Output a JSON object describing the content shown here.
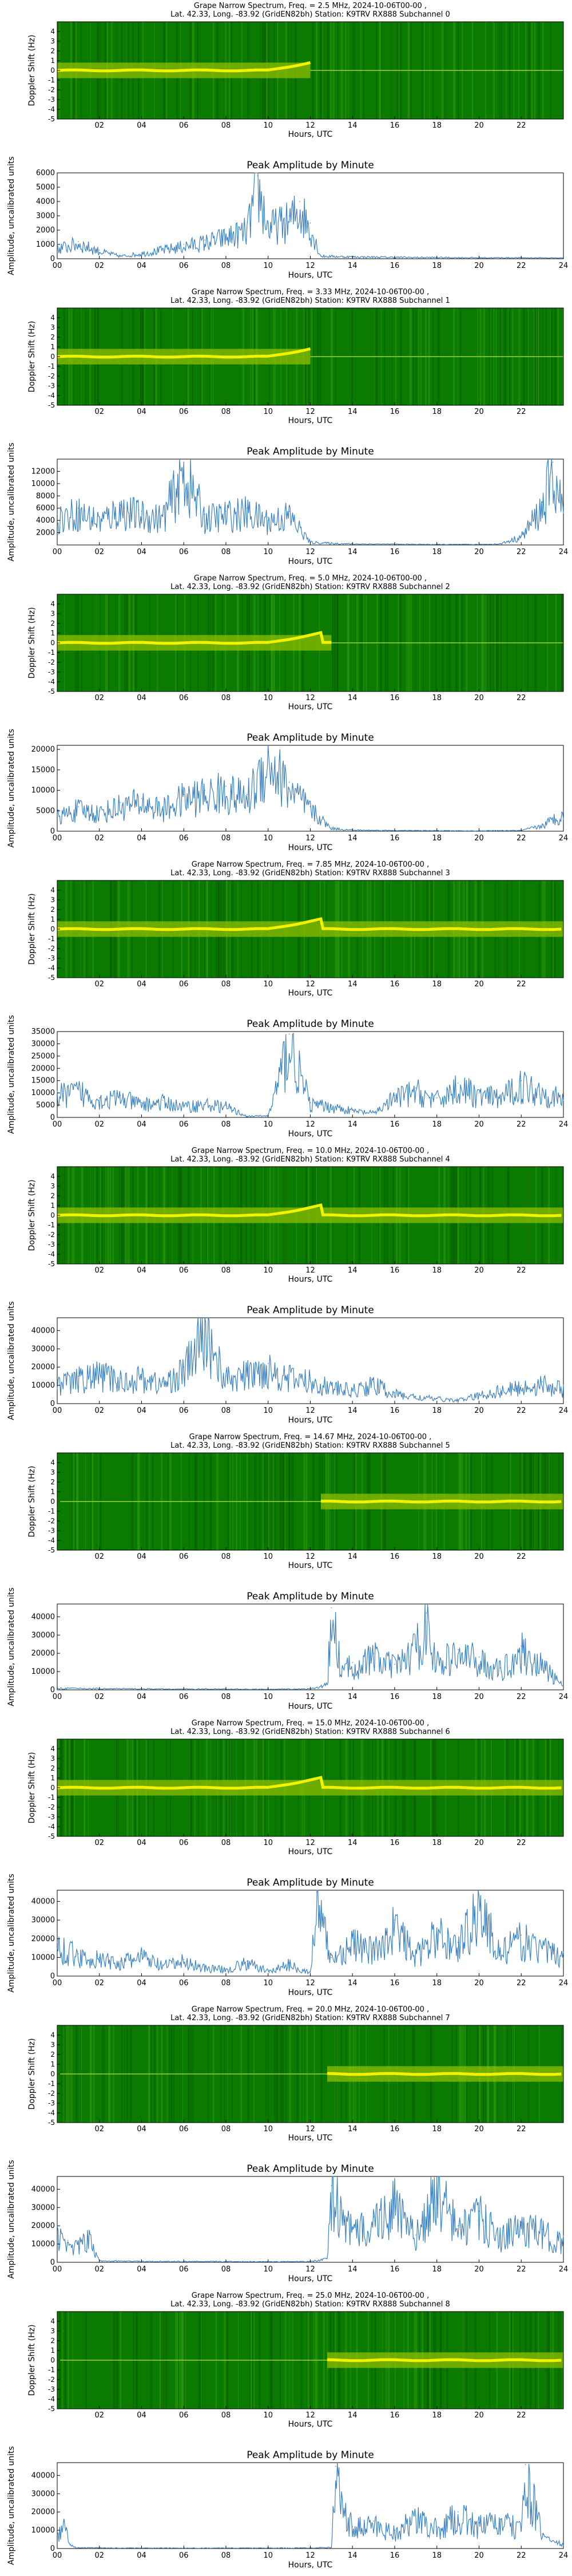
{
  "colors": {
    "spectrogram_bg": "#0a7a00",
    "spectrogram_band": "#f2f200",
    "spectrogram_mid": "#8fbf00",
    "amplitude_line": "#3b82c4",
    "axis": "#000000"
  },
  "chart_data": [
    {
      "type": "heatmap",
      "title_line1": "Grape Narrow Spectrum, Freq. = 2.5 MHz, 2024-10-06T00-00 ,",
      "title_line2": "Lat.  42.33, Long. -83.92 (GridEN82bh) Station: K9TRV RX888 Subchannel 0",
      "xlabel": "Hours, UTC",
      "ylabel": "Doppler Shift (Hz)",
      "xlim": [
        0,
        24
      ],
      "ylim": [
        -5,
        5
      ],
      "x_ticks": [
        "02",
        "04",
        "06",
        "08",
        "10",
        "12",
        "14",
        "16",
        "18",
        "20",
        "22"
      ],
      "y_ticks": [
        "4",
        "3",
        "2",
        "1",
        "0",
        "-1",
        "-2",
        "-3",
        "-4",
        "-5"
      ],
      "signal_start_hour": 0,
      "signal_end_hour": 12
    },
    {
      "type": "line",
      "title": "Peak Amplitude by Minute",
      "xlabel": "Hours, UTC",
      "ylabel": "Amplitude, uncalibrated units",
      "xlim": [
        0,
        24
      ],
      "ylim": [
        0,
        6000
      ],
      "x_ticks": [
        "00",
        "02",
        "04",
        "06",
        "08",
        "10",
        "12",
        "14",
        "16",
        "18",
        "20",
        "22",
        "24"
      ],
      "y_ticks": [
        "0",
        "1000",
        "2000",
        "3000",
        "4000",
        "5000",
        "6000"
      ],
      "x": [
        0,
        1,
        2,
        3,
        4,
        5,
        6,
        7,
        8,
        9,
        9.5,
        10,
        11,
        11.5,
        12,
        12.5,
        14,
        16,
        18,
        20,
        22,
        24
      ],
      "y": [
        800,
        1200,
        600,
        200,
        400,
        700,
        1000,
        1300,
        1700,
        2200,
        5800,
        2500,
        3000,
        4000,
        2500,
        200,
        150,
        120,
        100,
        80,
        80,
        60
      ]
    },
    {
      "type": "heatmap",
      "title_line1": "Grape Narrow Spectrum, Freq. = 3.33 MHz, 2024-10-06T00-00 ,",
      "title_line2": "Lat.  42.33, Long. -83.92 (GridEN82bh) Station: K9TRV RX888 Subchannel 1",
      "xlabel": "Hours, UTC",
      "ylabel": "Doppler Shift (Hz)",
      "xlim": [
        0,
        24
      ],
      "ylim": [
        -5,
        5
      ],
      "x_ticks": [
        "02",
        "04",
        "06",
        "08",
        "10",
        "12",
        "14",
        "16",
        "18",
        "20",
        "22"
      ],
      "y_ticks": [
        "4",
        "3",
        "2",
        "1",
        "0",
        "-1",
        "-2",
        "-3",
        "-4",
        "-5"
      ],
      "signal_start_hour": 0,
      "signal_end_hour": 12
    },
    {
      "type": "line",
      "title": "Peak Amplitude by Minute",
      "xlabel": "Hours, UTC",
      "ylabel": "Amplitude, uncalibrated units",
      "xlim": [
        0,
        24
      ],
      "ylim": [
        0,
        14000
      ],
      "x_ticks": [
        "00",
        "02",
        "04",
        "06",
        "08",
        "10",
        "12",
        "14",
        "16",
        "18",
        "20",
        "22",
        "24"
      ],
      "y_ticks": [
        "2000",
        "4000",
        "6000",
        "8000",
        "10000",
        "12000"
      ],
      "x": [
        0,
        1,
        2,
        3,
        4,
        5,
        6,
        7,
        8,
        9,
        10,
        11,
        12,
        13,
        14,
        16,
        18,
        20,
        21,
        22,
        23,
        23.5,
        24
      ],
      "y": [
        5000,
        6000,
        4500,
        6500,
        5500,
        5000,
        13500,
        5000,
        5500,
        6000,
        4500,
        5500,
        500,
        300,
        200,
        150,
        100,
        100,
        200,
        1500,
        7000,
        13500,
        6000
      ]
    },
    {
      "type": "heatmap",
      "title_line1": "Grape Narrow Spectrum, Freq. = 5.0 MHz, 2024-10-06T00-00 ,",
      "title_line2": "Lat.  42.33, Long. -83.92 (GridEN82bh) Station: K9TRV RX888 Subchannel 2",
      "xlabel": "Hours, UTC",
      "ylabel": "Doppler Shift (Hz)",
      "xlim": [
        0,
        24
      ],
      "ylim": [
        -5,
        5
      ],
      "x_ticks": [
        "02",
        "04",
        "06",
        "08",
        "10",
        "12",
        "14",
        "16",
        "18",
        "20",
        "22"
      ],
      "y_ticks": [
        "4",
        "3",
        "2",
        "1",
        "0",
        "-1",
        "-2",
        "-3",
        "-4",
        "-5"
      ],
      "signal_start_hour": 0,
      "signal_end_hour": 13
    },
    {
      "type": "line",
      "title": "Peak Amplitude by Minute",
      "xlabel": "Hours, UTC",
      "ylabel": "Amplitude, uncalibrated units",
      "xlim": [
        0,
        24
      ],
      "ylim": [
        0,
        21000
      ],
      "x_ticks": [
        "00",
        "02",
        "04",
        "06",
        "08",
        "10",
        "12",
        "14",
        "16",
        "18",
        "20",
        "22",
        "24"
      ],
      "y_ticks": [
        "0",
        "5000",
        "10000",
        "15000",
        "20000"
      ],
      "x": [
        0,
        1,
        2,
        3,
        4,
        5,
        6,
        7,
        8,
        9,
        10,
        11,
        12,
        13,
        14,
        16,
        18,
        20,
        22,
        23,
        24
      ],
      "y": [
        4000,
        6000,
        5000,
        7000,
        8000,
        6000,
        9000,
        10000,
        11000,
        9000,
        20000,
        12000,
        6000,
        800,
        300,
        200,
        150,
        100,
        200,
        1500,
        5000
      ]
    },
    {
      "type": "heatmap",
      "title_line1": "Grape Narrow Spectrum, Freq. = 7.85 MHz, 2024-10-06T00-00 ,",
      "title_line2": "Lat.  42.33, Long. -83.92 (GridEN82bh) Station: K9TRV RX888 Subchannel 3",
      "xlabel": "Hours, UTC",
      "ylabel": "Doppler Shift (Hz)",
      "xlim": [
        0,
        24
      ],
      "ylim": [
        -5,
        5
      ],
      "x_ticks": [
        "02",
        "04",
        "06",
        "08",
        "10",
        "12",
        "14",
        "16",
        "18",
        "20",
        "22"
      ],
      "y_ticks": [
        "4",
        "3",
        "2",
        "1",
        "0",
        "-1",
        "-2",
        "-3",
        "-4",
        "-5"
      ],
      "signal_start_hour": 0,
      "signal_end_hour": 24
    },
    {
      "type": "line",
      "title": "Peak Amplitude by Minute",
      "xlabel": "Hours, UTC",
      "ylabel": "Amplitude, uncalibrated units",
      "xlim": [
        0,
        24
      ],
      "ylim": [
        0,
        35000
      ],
      "x_ticks": [
        "00",
        "02",
        "04",
        "06",
        "08",
        "10",
        "12",
        "14",
        "16",
        "18",
        "20",
        "22",
        "24"
      ],
      "y_ticks": [
        "0",
        "5000",
        "10000",
        "15000",
        "20000",
        "25000",
        "30000",
        "35000"
      ],
      "x": [
        0,
        1,
        2,
        3,
        4,
        5,
        6,
        7,
        8,
        9,
        10,
        11,
        12,
        13,
        14,
        15,
        16,
        17,
        18,
        19,
        20,
        21,
        22,
        23,
        24
      ],
      "y": [
        10000,
        12000,
        8000,
        9000,
        6000,
        7000,
        5000,
        6000,
        5000,
        500,
        800,
        34000,
        6000,
        5000,
        3000,
        2000,
        9000,
        12000,
        8000,
        14000,
        10000,
        9000,
        15000,
        12000,
        8000
      ]
    },
    {
      "type": "heatmap",
      "title_line1": "Grape Narrow Spectrum, Freq. = 10.0 MHz, 2024-10-06T00-00 ,",
      "title_line2": "Lat.  42.33, Long. -83.92 (GridEN82bh) Station: K9TRV RX888 Subchannel 4",
      "xlabel": "Hours, UTC",
      "ylabel": "Doppler Shift (Hz)",
      "xlim": [
        0,
        24
      ],
      "ylim": [
        -5,
        5
      ],
      "x_ticks": [
        "02",
        "04",
        "06",
        "08",
        "10",
        "12",
        "14",
        "16",
        "18",
        "20",
        "22"
      ],
      "y_ticks": [
        "4",
        "3",
        "2",
        "1",
        "0",
        "-1",
        "-2",
        "-3",
        "-4",
        "-5"
      ],
      "signal_start_hour": 0,
      "signal_end_hour": 24
    },
    {
      "type": "line",
      "title": "Peak Amplitude by Minute",
      "xlabel": "Hours, UTC",
      "ylabel": "Amplitude, uncalibrated units",
      "xlim": [
        0,
        24
      ],
      "ylim": [
        0,
        47000
      ],
      "x_ticks": [
        "00",
        "02",
        "04",
        "06",
        "08",
        "10",
        "12",
        "14",
        "16",
        "18",
        "20",
        "22",
        "24"
      ],
      "y_ticks": [
        "0",
        "10000",
        "20000",
        "30000",
        "40000"
      ],
      "x": [
        0,
        1,
        2,
        3,
        4,
        5,
        6,
        7,
        8,
        9,
        10,
        11,
        12,
        13,
        14,
        15,
        16,
        17,
        18,
        19,
        20,
        21,
        22,
        23,
        24
      ],
      "y": [
        12000,
        15000,
        18000,
        14000,
        16000,
        12000,
        20000,
        45000,
        15000,
        18000,
        22000,
        16000,
        14000,
        10000,
        8000,
        12000,
        6000,
        4000,
        3000,
        2000,
        5000,
        8000,
        10000,
        12000,
        9000
      ]
    },
    {
      "type": "heatmap",
      "title_line1": "Grape Narrow Spectrum, Freq. = 14.67 MHz, 2024-10-06T00-00 ,",
      "title_line2": "Lat.  42.33, Long. -83.92 (GridEN82bh) Station: K9TRV RX888 Subchannel 5",
      "xlabel": "Hours, UTC",
      "ylabel": "Doppler Shift (Hz)",
      "xlim": [
        0,
        24
      ],
      "ylim": [
        -5,
        5
      ],
      "x_ticks": [
        "02",
        "04",
        "06",
        "08",
        "10",
        "12",
        "14",
        "16",
        "18",
        "20",
        "22"
      ],
      "y_ticks": [
        "4",
        "3",
        "2",
        "1",
        "0",
        "-1",
        "-2",
        "-3",
        "-4",
        "-5"
      ],
      "signal_start_hour": 12.5,
      "signal_end_hour": 24
    },
    {
      "type": "line",
      "title": "Peak Amplitude by Minute",
      "xlabel": "Hours, UTC",
      "ylabel": "Amplitude, uncalibrated units",
      "xlim": [
        0,
        24
      ],
      "ylim": [
        0,
        47000
      ],
      "x_ticks": [
        "00",
        "02",
        "04",
        "06",
        "08",
        "10",
        "12",
        "14",
        "16",
        "18",
        "20",
        "22",
        "24"
      ],
      "y_ticks": [
        "0",
        "10000",
        "20000",
        "30000",
        "40000"
      ],
      "x": [
        0,
        2,
        4,
        6,
        8,
        10,
        12,
        12.8,
        13,
        13.5,
        14,
        15,
        16,
        17,
        17.5,
        18,
        19,
        20,
        21,
        22,
        23,
        24
      ],
      "y": [
        1000,
        800,
        600,
        500,
        500,
        400,
        600,
        3000,
        45000,
        12000,
        15000,
        20000,
        14000,
        25000,
        42000,
        16000,
        22000,
        18000,
        12000,
        24000,
        15000,
        2000
      ]
    },
    {
      "type": "heatmap",
      "title_line1": "Grape Narrow Spectrum, Freq. = 15.0 MHz, 2024-10-06T00-00 ,",
      "title_line2": "Lat.  42.33, Long. -83.92 (GridEN82bh) Station: K9TRV RX888 Subchannel 6",
      "xlabel": "Hours, UTC",
      "ylabel": "Doppler Shift (Hz)",
      "xlim": [
        0,
        24
      ],
      "ylim": [
        -5,
        5
      ],
      "x_ticks": [
        "02",
        "04",
        "06",
        "08",
        "10",
        "12",
        "14",
        "16",
        "18",
        "20",
        "22"
      ],
      "y_ticks": [
        "4",
        "3",
        "2",
        "1",
        "0",
        "-1",
        "-2",
        "-3",
        "-4",
        "-5"
      ],
      "signal_start_hour": 0,
      "signal_end_hour": 24
    },
    {
      "type": "line",
      "title": "Peak Amplitude by Minute",
      "xlabel": "Hours, UTC",
      "ylabel": "Amplitude, uncalibrated units",
      "xlim": [
        0,
        24
      ],
      "ylim": [
        0,
        46000
      ],
      "x_ticks": [
        "00",
        "02",
        "04",
        "06",
        "08",
        "10",
        "12",
        "14",
        "16",
        "18",
        "20",
        "22",
        "24"
      ],
      "y_ticks": [
        "0",
        "10000",
        "20000",
        "30000",
        "40000"
      ],
      "x": [
        0,
        1,
        2,
        3,
        4,
        5,
        6,
        7,
        8,
        9,
        10,
        11,
        12,
        12.3,
        13,
        14,
        15,
        16,
        17,
        18,
        19,
        20,
        21,
        22,
        23,
        24
      ],
      "y": [
        18000,
        12000,
        10000,
        8000,
        12000,
        6000,
        9000,
        5000,
        4000,
        8000,
        3000,
        7000,
        2000,
        45000,
        10000,
        20000,
        15000,
        30000,
        12000,
        25000,
        18000,
        42000,
        14000,
        22000,
        16000,
        12000
      ]
    },
    {
      "type": "heatmap",
      "title_line1": "Grape Narrow Spectrum, Freq. = 20.0 MHz, 2024-10-06T00-00 ,",
      "title_line2": "Lat.  42.33, Long. -83.92 (GridEN82bh) Station: K9TRV RX888 Subchannel 7",
      "xlabel": "Hours, UTC",
      "ylabel": "Doppler Shift (Hz)",
      "xlim": [
        0,
        24
      ],
      "ylim": [
        -5,
        5
      ],
      "x_ticks": [
        "02",
        "04",
        "06",
        "08",
        "10",
        "12",
        "14",
        "16",
        "18",
        "20",
        "22"
      ],
      "y_ticks": [
        "4",
        "3",
        "2",
        "1",
        "0",
        "-1",
        "-2",
        "-3",
        "-4",
        "-5"
      ],
      "signal_start_hour": 12.8,
      "signal_end_hour": 24
    },
    {
      "type": "line",
      "title": "Peak Amplitude by Minute",
      "xlabel": "Hours, UTC",
      "ylabel": "Amplitude, uncalibrated units",
      "xlim": [
        0,
        24
      ],
      "ylim": [
        0,
        47000
      ],
      "x_ticks": [
        "00",
        "02",
        "04",
        "06",
        "08",
        "10",
        "12",
        "14",
        "16",
        "18",
        "20",
        "22",
        "24"
      ],
      "y_ticks": [
        "0",
        "10000",
        "20000",
        "30000",
        "40000"
      ],
      "x": [
        0,
        0.5,
        1,
        1.5,
        2,
        4,
        6,
        8,
        10,
        12,
        12.8,
        13,
        14,
        15,
        16,
        17,
        18,
        19,
        20,
        21,
        22,
        23,
        24
      ],
      "y": [
        15000,
        12000,
        10000,
        14000,
        800,
        600,
        500,
        500,
        400,
        500,
        2000,
        42000,
        18000,
        25000,
        35000,
        15000,
        46000,
        20000,
        28000,
        15000,
        22000,
        18000,
        12000
      ]
    },
    {
      "type": "heatmap",
      "title_line1": "Grape Narrow Spectrum, Freq. = 25.0 MHz, 2024-10-06T00-00 ,",
      "title_line2": "Lat.  42.33, Long. -83.92 (GridEN82bh) Station: K9TRV RX888 Subchannel 8",
      "xlabel": "Hours, UTC",
      "ylabel": "Doppler Shift (Hz)",
      "xlim": [
        0,
        24
      ],
      "ylim": [
        -5,
        5
      ],
      "x_ticks": [
        "02",
        "04",
        "06",
        "08",
        "10",
        "12",
        "14",
        "16",
        "18",
        "20",
        "22"
      ],
      "y_ticks": [
        "4",
        "3",
        "2",
        "1",
        "0",
        "-1",
        "-2",
        "-3",
        "-4",
        "-5"
      ],
      "signal_start_hour": 12.8,
      "signal_end_hour": 24
    },
    {
      "type": "line",
      "title": "Peak Amplitude by Minute",
      "xlabel": "Hours, UTC",
      "ylabel": "Amplitude, uncalibrated units",
      "xlim": [
        0,
        24
      ],
      "ylim": [
        0,
        47000
      ],
      "x_ticks": [
        "00",
        "02",
        "04",
        "06",
        "08",
        "10",
        "12",
        "14",
        "16",
        "18",
        "20",
        "22",
        "24"
      ],
      "y_ticks": [
        "0",
        "10000",
        "20000",
        "30000",
        "40000"
      ],
      "x": [
        0,
        0.3,
        0.6,
        1,
        2,
        4,
        6,
        8,
        10,
        12,
        13,
        13.2,
        14,
        15,
        16,
        17,
        18,
        19,
        20,
        21,
        22,
        22.2,
        23,
        24
      ],
      "y": [
        8000,
        15000,
        2000,
        500,
        400,
        300,
        300,
        300,
        300,
        400,
        800,
        45000,
        12000,
        15000,
        10000,
        18000,
        12000,
        20000,
        14000,
        16000,
        12000,
        46000,
        8000,
        2000
      ]
    }
  ]
}
